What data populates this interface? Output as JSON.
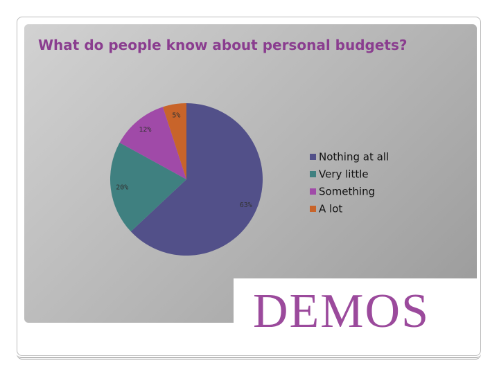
{
  "chart_data": {
    "type": "pie",
    "title": "What do people know about personal budgets?",
    "categories": [
      "Nothing at all",
      "Very little",
      "Something",
      "A lot"
    ],
    "values": [
      63,
      20,
      12,
      5
    ],
    "value_labels": [
      "63%",
      "20%",
      "12%",
      "5%"
    ],
    "colors": [
      "#525089",
      "#3f8080",
      "#a04aa8",
      "#c8642a"
    ],
    "legend": "right"
  },
  "logo": "DEMOS"
}
